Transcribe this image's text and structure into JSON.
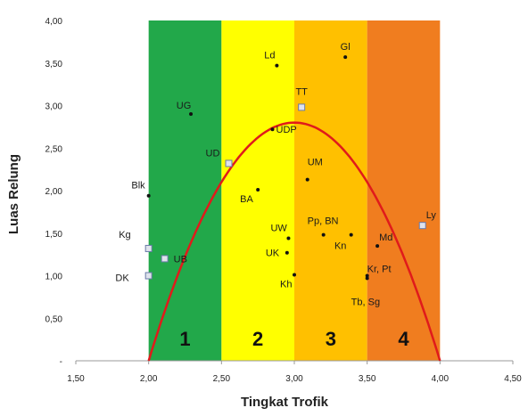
{
  "chart_data": {
    "type": "scatter",
    "xlabel": "Tingkat Trofik",
    "ylabel": "Luas Relung",
    "xlim": [
      1.5,
      4.5
    ],
    "ylim": [
      0,
      4.0
    ],
    "x_ticks": [
      "1,50",
      "2,00",
      "2,50",
      "3,00",
      "3,50",
      "4,00",
      "4,50"
    ],
    "y_ticks": [
      "-",
      "0,50",
      "1,00",
      "1,50",
      "2,00",
      "2,50",
      "3,00",
      "3,50",
      "4,00"
    ],
    "grid": false,
    "zones": [
      {
        "label": "1",
        "x_from": 2.0,
        "x_to": 2.5,
        "color": "#22a84a"
      },
      {
        "label": "2",
        "x_from": 2.5,
        "x_to": 3.0,
        "color": "#ffff00"
      },
      {
        "label": "3",
        "x_from": 3.0,
        "x_to": 3.5,
        "color": "#ffc000"
      },
      {
        "label": "4",
        "x_from": 3.5,
        "x_to": 4.0,
        "color": "#f07d1f"
      }
    ],
    "curve": {
      "color": "#e01b1b",
      "coefficients": [
        -2.8,
        16.8,
        -22.4
      ]
    },
    "points": [
      {
        "label": "Ld",
        "x": 2.88,
        "y": 3.47,
        "marker": "dot"
      },
      {
        "label": "Gl",
        "x": 3.35,
        "y": 3.57,
        "marker": "dot"
      },
      {
        "label": "TT",
        "x": 3.05,
        "y": 2.98,
        "marker": "square"
      },
      {
        "label": "UG",
        "x": 2.29,
        "y": 2.9,
        "marker": "dot"
      },
      {
        "label": "UDP",
        "x": 2.85,
        "y": 2.72,
        "marker": "dot"
      },
      {
        "label": "UD",
        "x": 2.55,
        "y": 2.32,
        "marker": "square"
      },
      {
        "label": "UM",
        "x": 3.09,
        "y": 2.13,
        "marker": "dot"
      },
      {
        "label": "BA",
        "x": 2.75,
        "y": 2.01,
        "marker": "dot"
      },
      {
        "label": "Blk",
        "x": 2.0,
        "y": 1.94,
        "marker": "dot"
      },
      {
        "label": "Pp, BN",
        "x": 3.2,
        "y": 1.48,
        "marker": "dot"
      },
      {
        "label": "Kn",
        "x": 3.39,
        "y": 1.48,
        "marker": "dot"
      },
      {
        "label": "UW",
        "x": 2.96,
        "y": 1.44,
        "marker": "dot"
      },
      {
        "label": "Ly",
        "x": 3.88,
        "y": 1.59,
        "marker": "square"
      },
      {
        "label": "Md",
        "x": 3.57,
        "y": 1.35,
        "marker": "dot"
      },
      {
        "label": "Kg",
        "x": 2.0,
        "y": 1.32,
        "marker": "square"
      },
      {
        "label": "UK",
        "x": 2.95,
        "y": 1.27,
        "marker": "dot"
      },
      {
        "label": "UB",
        "x": 2.11,
        "y": 1.2,
        "marker": "square"
      },
      {
        "label": "DK",
        "x": 2.0,
        "y": 1.0,
        "marker": "square"
      },
      {
        "label": "Kh",
        "x": 3.0,
        "y": 1.01,
        "marker": "dot"
      },
      {
        "label": "Kr, Pt",
        "x": 3.5,
        "y": 1.0,
        "marker": "dot"
      },
      {
        "label": "Tb, Sg",
        "x": 3.5,
        "y": 0.97,
        "marker": "dot"
      }
    ]
  }
}
